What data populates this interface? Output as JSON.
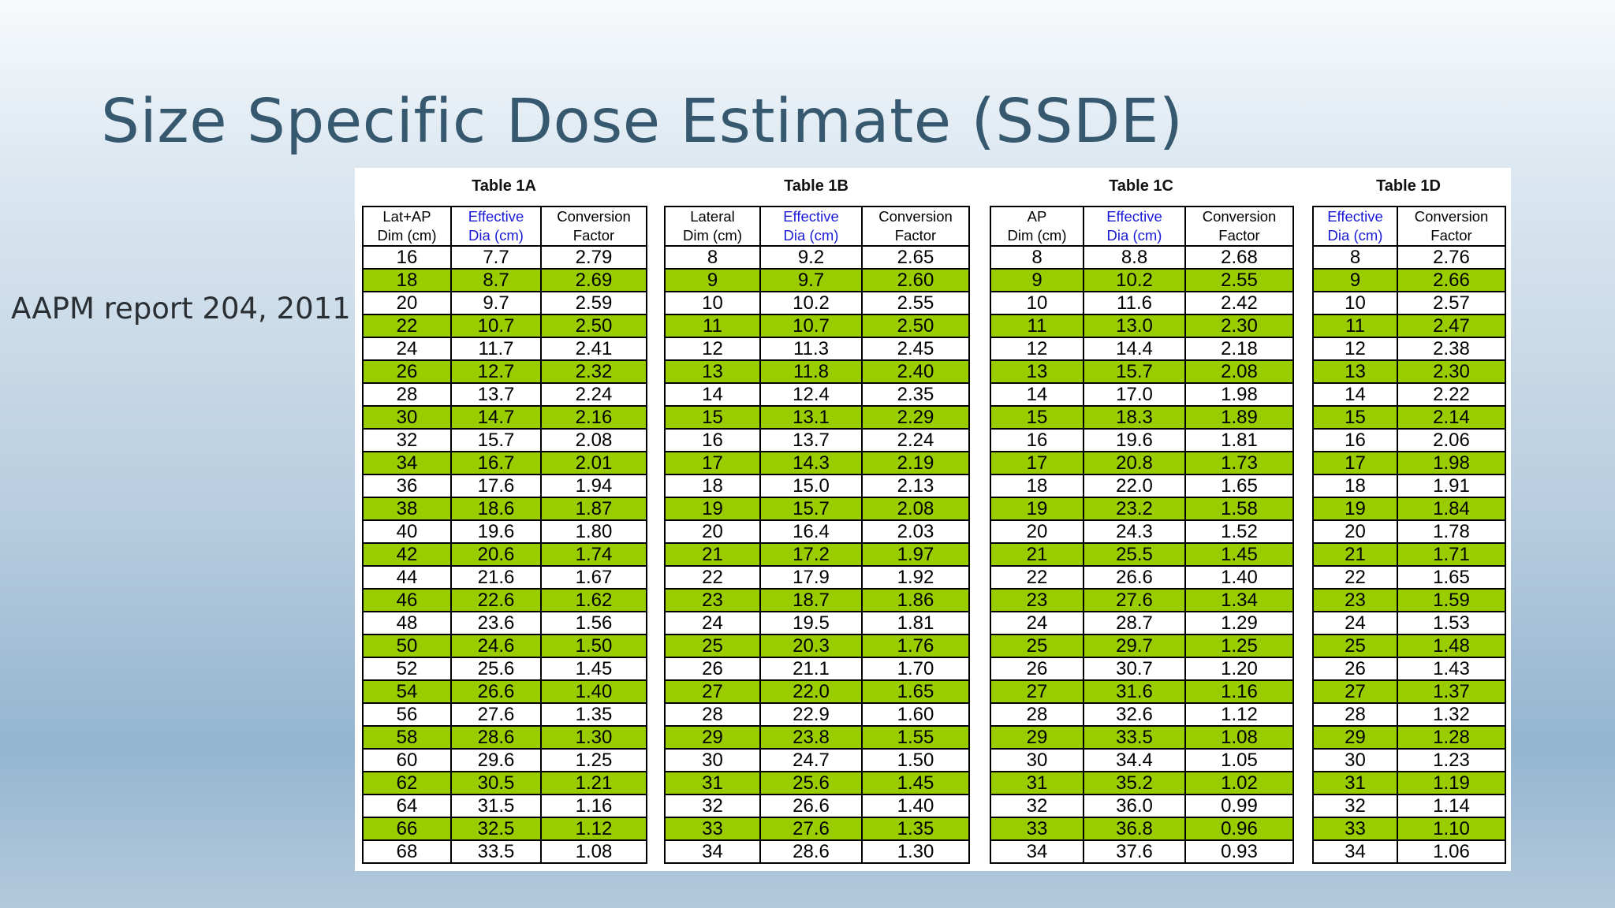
{
  "slide": {
    "title": "Size Specific Dose Estimate (SSDE)",
    "side_note": "AAPM report 204, 2011"
  },
  "colors": {
    "highlight_row": "#9acd00",
    "effective_header": "#1a1ad6",
    "title": "#36596f"
  },
  "tables": [
    {
      "title": "Table 1A",
      "headers": [
        {
          "line1": "Lat+AP",
          "line2": "Dim (cm)",
          "effective": false
        },
        {
          "line1": "Effective",
          "line2": "Dia (cm)",
          "effective": true
        },
        {
          "line1": "Conversion",
          "line2": "Factor",
          "effective": false
        }
      ],
      "rows": [
        [
          "16",
          "7.7",
          "2.79"
        ],
        [
          "18",
          "8.7",
          "2.69"
        ],
        [
          "20",
          "9.7",
          "2.59"
        ],
        [
          "22",
          "10.7",
          "2.50"
        ],
        [
          "24",
          "11.7",
          "2.41"
        ],
        [
          "26",
          "12.7",
          "2.32"
        ],
        [
          "28",
          "13.7",
          "2.24"
        ],
        [
          "30",
          "14.7",
          "2.16"
        ],
        [
          "32",
          "15.7",
          "2.08"
        ],
        [
          "34",
          "16.7",
          "2.01"
        ],
        [
          "36",
          "17.6",
          "1.94"
        ],
        [
          "38",
          "18.6",
          "1.87"
        ],
        [
          "40",
          "19.6",
          "1.80"
        ],
        [
          "42",
          "20.6",
          "1.74"
        ],
        [
          "44",
          "21.6",
          "1.67"
        ],
        [
          "46",
          "22.6",
          "1.62"
        ],
        [
          "48",
          "23.6",
          "1.56"
        ],
        [
          "50",
          "24.6",
          "1.50"
        ],
        [
          "52",
          "25.6",
          "1.45"
        ],
        [
          "54",
          "26.6",
          "1.40"
        ],
        [
          "56",
          "27.6",
          "1.35"
        ],
        [
          "58",
          "28.6",
          "1.30"
        ],
        [
          "60",
          "29.6",
          "1.25"
        ],
        [
          "62",
          "30.5",
          "1.21"
        ],
        [
          "64",
          "31.5",
          "1.16"
        ],
        [
          "66",
          "32.5",
          "1.12"
        ],
        [
          "68",
          "33.5",
          "1.08"
        ]
      ]
    },
    {
      "title": "Table 1B",
      "headers": [
        {
          "line1": "Lateral",
          "line2": "Dim (cm)",
          "effective": false
        },
        {
          "line1": "Effective",
          "line2": "Dia (cm)",
          "effective": true
        },
        {
          "line1": "Conversion",
          "line2": "Factor",
          "effective": false
        }
      ],
      "rows": [
        [
          "8",
          "9.2",
          "2.65"
        ],
        [
          "9",
          "9.7",
          "2.60"
        ],
        [
          "10",
          "10.2",
          "2.55"
        ],
        [
          "11",
          "10.7",
          "2.50"
        ],
        [
          "12",
          "11.3",
          "2.45"
        ],
        [
          "13",
          "11.8",
          "2.40"
        ],
        [
          "14",
          "12.4",
          "2.35"
        ],
        [
          "15",
          "13.1",
          "2.29"
        ],
        [
          "16",
          "13.7",
          "2.24"
        ],
        [
          "17",
          "14.3",
          "2.19"
        ],
        [
          "18",
          "15.0",
          "2.13"
        ],
        [
          "19",
          "15.7",
          "2.08"
        ],
        [
          "20",
          "16.4",
          "2.03"
        ],
        [
          "21",
          "17.2",
          "1.97"
        ],
        [
          "22",
          "17.9",
          "1.92"
        ],
        [
          "23",
          "18.7",
          "1.86"
        ],
        [
          "24",
          "19.5",
          "1.81"
        ],
        [
          "25",
          "20.3",
          "1.76"
        ],
        [
          "26",
          "21.1",
          "1.70"
        ],
        [
          "27",
          "22.0",
          "1.65"
        ],
        [
          "28",
          "22.9",
          "1.60"
        ],
        [
          "29",
          "23.8",
          "1.55"
        ],
        [
          "30",
          "24.7",
          "1.50"
        ],
        [
          "31",
          "25.6",
          "1.45"
        ],
        [
          "32",
          "26.6",
          "1.40"
        ],
        [
          "33",
          "27.6",
          "1.35"
        ],
        [
          "34",
          "28.6",
          "1.30"
        ]
      ]
    },
    {
      "title": "Table 1C",
      "headers": [
        {
          "line1": "AP",
          "line2": "Dim (cm)",
          "effective": false
        },
        {
          "line1": "Effective",
          "line2": "Dia (cm)",
          "effective": true
        },
        {
          "line1": "Conversion",
          "line2": "Factor",
          "effective": false
        }
      ],
      "rows": [
        [
          "8",
          "8.8",
          "2.68"
        ],
        [
          "9",
          "10.2",
          "2.55"
        ],
        [
          "10",
          "11.6",
          "2.42"
        ],
        [
          "11",
          "13.0",
          "2.30"
        ],
        [
          "12",
          "14.4",
          "2.18"
        ],
        [
          "13",
          "15.7",
          "2.08"
        ],
        [
          "14",
          "17.0",
          "1.98"
        ],
        [
          "15",
          "18.3",
          "1.89"
        ],
        [
          "16",
          "19.6",
          "1.81"
        ],
        [
          "17",
          "20.8",
          "1.73"
        ],
        [
          "18",
          "22.0",
          "1.65"
        ],
        [
          "19",
          "23.2",
          "1.58"
        ],
        [
          "20",
          "24.3",
          "1.52"
        ],
        [
          "21",
          "25.5",
          "1.45"
        ],
        [
          "22",
          "26.6",
          "1.40"
        ],
        [
          "23",
          "27.6",
          "1.34"
        ],
        [
          "24",
          "28.7",
          "1.29"
        ],
        [
          "25",
          "29.7",
          "1.25"
        ],
        [
          "26",
          "30.7",
          "1.20"
        ],
        [
          "27",
          "31.6",
          "1.16"
        ],
        [
          "28",
          "32.6",
          "1.12"
        ],
        [
          "29",
          "33.5",
          "1.08"
        ],
        [
          "30",
          "34.4",
          "1.05"
        ],
        [
          "31",
          "35.2",
          "1.02"
        ],
        [
          "32",
          "36.0",
          "0.99"
        ],
        [
          "33",
          "36.8",
          "0.96"
        ],
        [
          "34",
          "37.6",
          "0.93"
        ]
      ]
    },
    {
      "title": "Table 1D",
      "headers": [
        {
          "line1": "Effective",
          "line2": "Dia (cm)",
          "effective": true
        },
        {
          "line1": "Conversion",
          "line2": "Factor",
          "effective": false
        }
      ],
      "rows": [
        [
          "8",
          "2.76"
        ],
        [
          "9",
          "2.66"
        ],
        [
          "10",
          "2.57"
        ],
        [
          "11",
          "2.47"
        ],
        [
          "12",
          "2.38"
        ],
        [
          "13",
          "2.30"
        ],
        [
          "14",
          "2.22"
        ],
        [
          "15",
          "2.14"
        ],
        [
          "16",
          "2.06"
        ],
        [
          "17",
          "1.98"
        ],
        [
          "18",
          "1.91"
        ],
        [
          "19",
          "1.84"
        ],
        [
          "20",
          "1.78"
        ],
        [
          "21",
          "1.71"
        ],
        [
          "22",
          "1.65"
        ],
        [
          "23",
          "1.59"
        ],
        [
          "24",
          "1.53"
        ],
        [
          "25",
          "1.48"
        ],
        [
          "26",
          "1.43"
        ],
        [
          "27",
          "1.37"
        ],
        [
          "28",
          "1.32"
        ],
        [
          "29",
          "1.28"
        ],
        [
          "30",
          "1.23"
        ],
        [
          "31",
          "1.19"
        ],
        [
          "32",
          "1.14"
        ],
        [
          "33",
          "1.10"
        ],
        [
          "34",
          "1.06"
        ]
      ]
    }
  ]
}
